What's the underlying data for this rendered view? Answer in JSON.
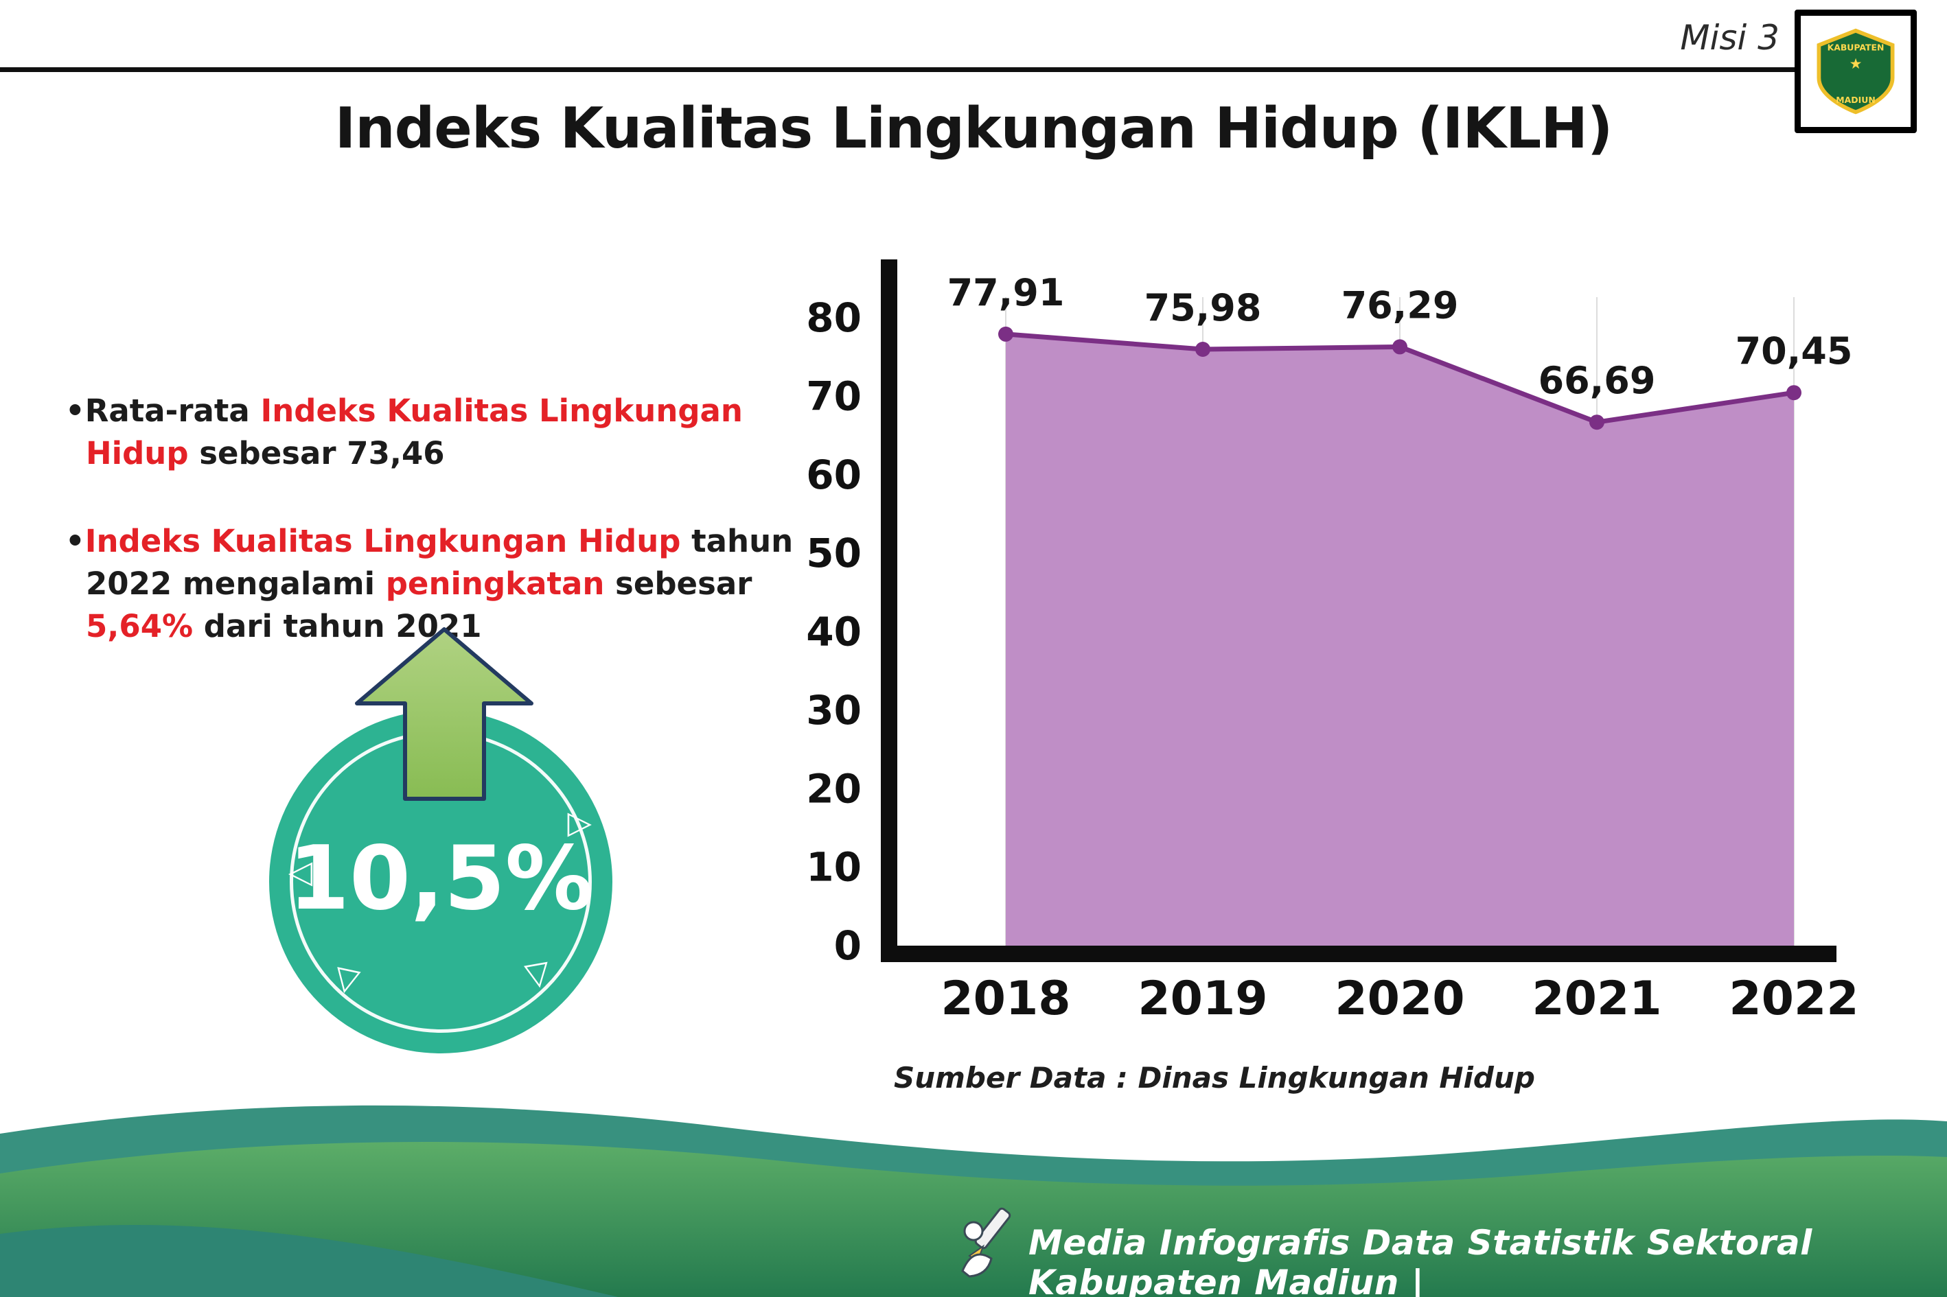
{
  "header": {
    "misi_label": "Misi 3",
    "logo": {
      "text_top": "KABUPATEN",
      "star": "★",
      "text_bottom": "MADIUN"
    },
    "title": "Indeks Kualitas Lingkungan Hidup (IKLH)"
  },
  "bullets": {
    "marker": "•",
    "item1": {
      "pre": "Rata-rata ",
      "red": "Indeks Kualitas Lingkungan Hidup",
      "post": " sebesar 73,46"
    },
    "item2": {
      "red1": "Indeks Kualitas Lingkungan Hidup",
      "mid1": " tahun 2022 mengalami ",
      "red2": "peningkatan",
      "mid2": " sebesar ",
      "red3": "5,64%",
      "post": " dari tahun 2021"
    }
  },
  "highlight_badge": {
    "value": "10,5%",
    "triangles": [
      "◁",
      "▷",
      "▽",
      "▽"
    ]
  },
  "chart_data": {
    "type": "area",
    "title": "",
    "categories": [
      "2018",
      "2019",
      "2020",
      "2021",
      "2022"
    ],
    "values": [
      77.91,
      75.98,
      76.29,
      66.69,
      70.45
    ],
    "value_labels": [
      "77,91",
      "75,98",
      "76,29",
      "66,69",
      "70,45"
    ],
    "ylim": [
      0,
      80
    ],
    "yticks": [
      0,
      10,
      20,
      30,
      40,
      50,
      60,
      70,
      80
    ],
    "grid": "vertical-light",
    "legend": "none",
    "area_color": "#bf8ec6",
    "line_color": "#7b2f85",
    "source": "Sumber Data : Dinas Lingkungan Hidup"
  },
  "footer": {
    "credit": "Media Infografis Data Statistik Sektoral Kabupaten Madiun |"
  },
  "colors": {
    "accent_red": "#e42127",
    "badge_teal": "#2db392",
    "arrow_green": "#97c464",
    "footer_green": "#3f9d5f",
    "footer_teal": "#38917f"
  }
}
